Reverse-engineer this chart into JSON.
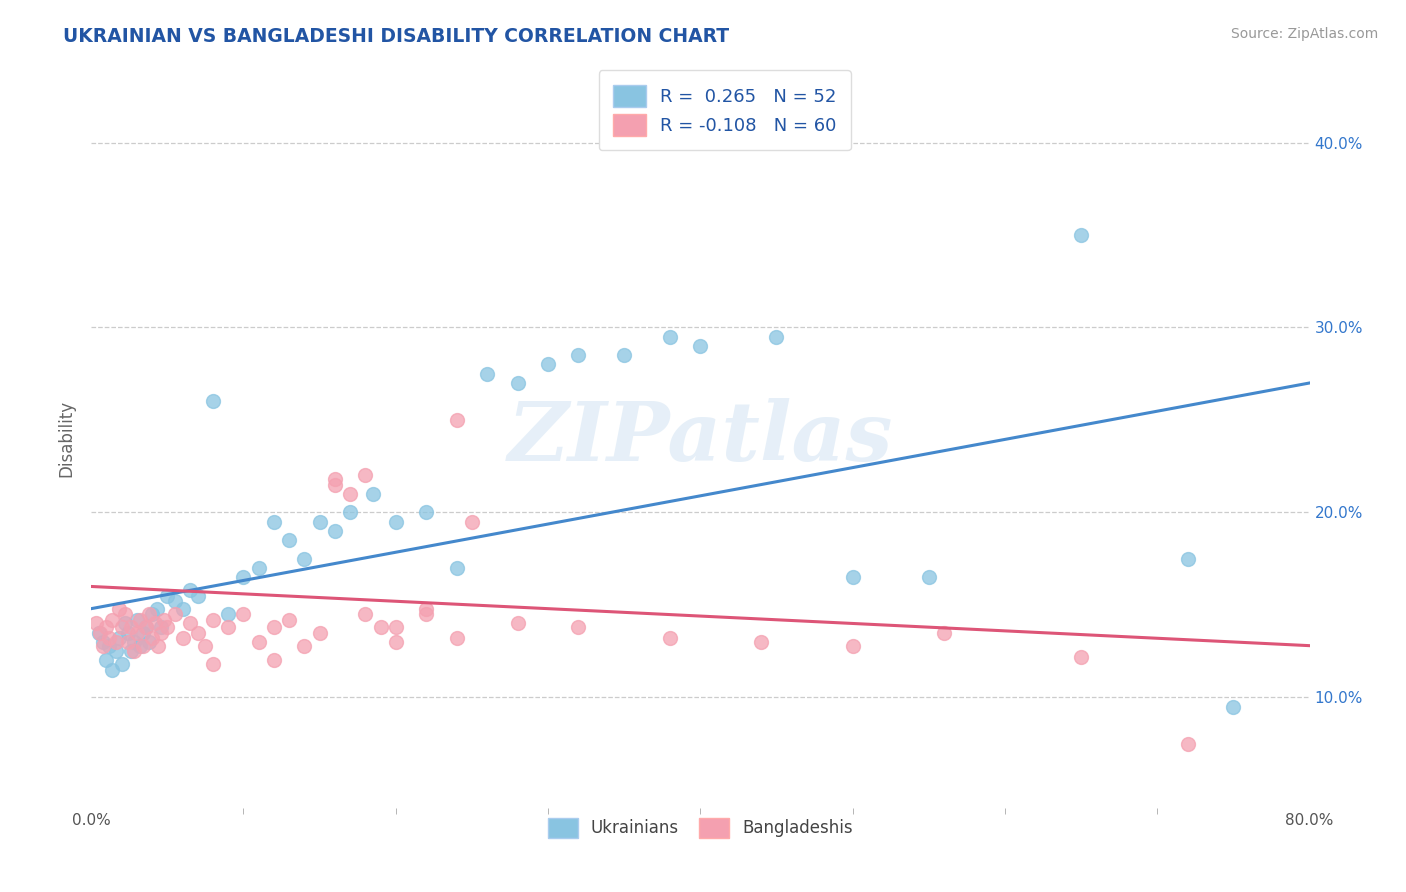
{
  "title": "UKRAINIAN VS BANGLADESHI DISABILITY CORRELATION CHART",
  "source": "Source: ZipAtlas.com",
  "ylabel": "Disability",
  "xlabel_ukrainians": "Ukrainians",
  "xlabel_bangladeshis": "Bangladeshis",
  "watermark": "ZIPatlas",
  "r_ukrainian": 0.265,
  "n_ukrainian": 52,
  "r_bangladeshi": -0.108,
  "n_bangladeshi": 60,
  "xlim": [
    0.0,
    0.8
  ],
  "ylim": [
    0.04,
    0.44
  ],
  "x_ticks_labels": [
    0.0,
    0.8
  ],
  "y_ticks": [
    0.1,
    0.2,
    0.3,
    0.4
  ],
  "blue_color": "#89c4e1",
  "pink_color": "#f4a0b0",
  "blue_line_color": "#4488cc",
  "pink_line_color": "#dd5577",
  "title_color": "#2255a4",
  "source_color": "#999999",
  "grid_color": "#cccccc",
  "ukrainians_x": [
    0.005,
    0.008,
    0.01,
    0.012,
    0.014,
    0.016,
    0.018,
    0.02,
    0.022,
    0.024,
    0.026,
    0.028,
    0.03,
    0.032,
    0.034,
    0.036,
    0.038,
    0.04,
    0.043,
    0.046,
    0.05,
    0.055,
    0.06,
    0.065,
    0.07,
    0.08,
    0.09,
    0.1,
    0.11,
    0.12,
    0.13,
    0.14,
    0.15,
    0.16,
    0.17,
    0.185,
    0.2,
    0.22,
    0.24,
    0.26,
    0.28,
    0.3,
    0.32,
    0.35,
    0.38,
    0.4,
    0.45,
    0.5,
    0.55,
    0.65,
    0.72,
    0.75
  ],
  "ukrainians_y": [
    0.135,
    0.13,
    0.12,
    0.128,
    0.115,
    0.125,
    0.132,
    0.118,
    0.14,
    0.135,
    0.125,
    0.13,
    0.142,
    0.128,
    0.135,
    0.138,
    0.13,
    0.145,
    0.148,
    0.138,
    0.155,
    0.152,
    0.148,
    0.158,
    0.155,
    0.26,
    0.145,
    0.165,
    0.17,
    0.195,
    0.185,
    0.175,
    0.195,
    0.19,
    0.2,
    0.21,
    0.195,
    0.2,
    0.17,
    0.275,
    0.27,
    0.28,
    0.285,
    0.285,
    0.295,
    0.29,
    0.295,
    0.165,
    0.165,
    0.35,
    0.175,
    0.095
  ],
  "bangladeshis_x": [
    0.003,
    0.006,
    0.008,
    0.01,
    0.012,
    0.014,
    0.016,
    0.018,
    0.02,
    0.022,
    0.024,
    0.026,
    0.028,
    0.03,
    0.032,
    0.034,
    0.036,
    0.038,
    0.04,
    0.042,
    0.044,
    0.046,
    0.048,
    0.05,
    0.055,
    0.06,
    0.065,
    0.07,
    0.075,
    0.08,
    0.09,
    0.1,
    0.11,
    0.12,
    0.13,
    0.14,
    0.15,
    0.16,
    0.17,
    0.18,
    0.19,
    0.2,
    0.22,
    0.24,
    0.16,
    0.18,
    0.2,
    0.22,
    0.24,
    0.28,
    0.32,
    0.38,
    0.44,
    0.5,
    0.56,
    0.65,
    0.72,
    0.08,
    0.12,
    0.25
  ],
  "bangladeshis_y": [
    0.14,
    0.135,
    0.128,
    0.138,
    0.132,
    0.142,
    0.13,
    0.148,
    0.138,
    0.145,
    0.13,
    0.138,
    0.125,
    0.135,
    0.142,
    0.128,
    0.138,
    0.145,
    0.132,
    0.14,
    0.128,
    0.135,
    0.142,
    0.138,
    0.145,
    0.132,
    0.14,
    0.135,
    0.128,
    0.142,
    0.138,
    0.145,
    0.13,
    0.138,
    0.142,
    0.128,
    0.135,
    0.218,
    0.21,
    0.145,
    0.138,
    0.13,
    0.148,
    0.25,
    0.215,
    0.22,
    0.138,
    0.145,
    0.132,
    0.14,
    0.138,
    0.132,
    0.13,
    0.128,
    0.135,
    0.122,
    0.075,
    0.118,
    0.12,
    0.195
  ],
  "blue_line_x0": 0.0,
  "blue_line_y0": 0.148,
  "blue_line_x1": 0.8,
  "blue_line_y1": 0.27,
  "pink_line_x0": 0.0,
  "pink_line_y0": 0.16,
  "pink_line_x1": 0.8,
  "pink_line_y1": 0.128
}
